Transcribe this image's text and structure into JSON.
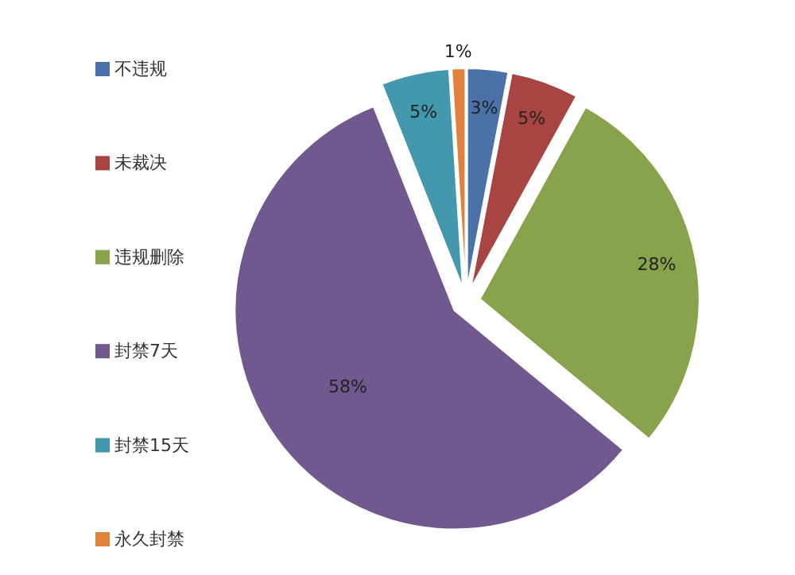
{
  "chart_data": {
    "type": "pie",
    "categories": [
      "不违规",
      "未裁决",
      "违规删除",
      "封禁7天",
      "封禁15天",
      "永久封禁"
    ],
    "values": [
      3,
      5,
      28,
      58,
      5,
      1
    ],
    "colors": [
      "#4a72a8",
      "#a84543",
      "#88a34b",
      "#71588f",
      "#4398ae",
      "#e0823d"
    ],
    "value_labels": [
      "3%",
      "5%",
      "28%",
      "58%",
      "5%",
      "1%"
    ],
    "legend": "left"
  }
}
